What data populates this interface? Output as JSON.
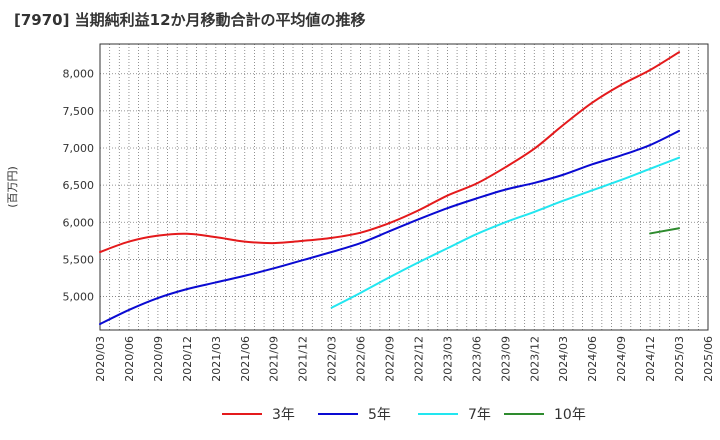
{
  "title": "[7970]  当期純利益12か月移動合計の平均値の推移",
  "chart_data": {
    "type": "line",
    "ylabel": "(百万円)",
    "xlabel": "",
    "ylim": [
      4550,
      8400
    ],
    "yticks": [
      5000,
      5500,
      6000,
      6500,
      7000,
      7500,
      8000
    ],
    "ytick_labels": [
      "5,000",
      "5,500",
      "6,000",
      "6,500",
      "7,000",
      "7,500",
      "8,000"
    ],
    "x_start": "2020/03",
    "x_end": "2025/06",
    "xtick_labels": [
      "2020/03",
      "2020/06",
      "2020/09",
      "2020/12",
      "2021/03",
      "2021/06",
      "2021/09",
      "2021/12",
      "2022/03",
      "2022/06",
      "2022/09",
      "2022/12",
      "2023/03",
      "2023/06",
      "2023/09",
      "2023/12",
      "2024/03",
      "2024/06",
      "2024/09",
      "2024/12",
      "2025/03",
      "2025/06"
    ],
    "grid": true,
    "legend_position": "bottom",
    "series": [
      {
        "name": "3年",
        "color": "#e41a1c",
        "x": [
          "2020/03",
          "2020/06",
          "2020/09",
          "2020/12",
          "2021/03",
          "2021/06",
          "2021/09",
          "2021/12",
          "2022/03",
          "2022/06",
          "2022/09",
          "2022/12",
          "2023/03",
          "2023/06",
          "2023/09",
          "2023/12",
          "2024/03",
          "2024/06",
          "2024/09",
          "2024/12",
          "2025/03"
        ],
        "values": [
          5600,
          5740,
          5820,
          5845,
          5800,
          5740,
          5720,
          5750,
          5790,
          5860,
          5990,
          6160,
          6360,
          6520,
          6740,
          6990,
          7310,
          7610,
          7850,
          8050,
          8290
        ]
      },
      {
        "name": "5年",
        "color": "#0a0ad2",
        "x": [
          "2020/03",
          "2020/06",
          "2020/09",
          "2020/12",
          "2021/03",
          "2021/06",
          "2021/09",
          "2021/12",
          "2022/03",
          "2022/06",
          "2022/09",
          "2022/12",
          "2023/03",
          "2023/06",
          "2023/09",
          "2023/12",
          "2024/03",
          "2024/06",
          "2024/09",
          "2024/12",
          "2025/03"
        ],
        "values": [
          4630,
          4820,
          4980,
          5100,
          5190,
          5280,
          5380,
          5490,
          5600,
          5720,
          5880,
          6040,
          6190,
          6320,
          6440,
          6530,
          6640,
          6780,
          6900,
          7040,
          7230
        ]
      },
      {
        "name": "7年",
        "color": "#22e6f0",
        "x": [
          "2022/03",
          "2022/06",
          "2022/09",
          "2022/12",
          "2023/03",
          "2023/06",
          "2023/09",
          "2023/12",
          "2024/03",
          "2024/06",
          "2024/09",
          "2024/12",
          "2025/03"
        ],
        "values": [
          4850,
          5050,
          5260,
          5460,
          5650,
          5840,
          6000,
          6140,
          6290,
          6430,
          6570,
          6720,
          6870
        ]
      },
      {
        "name": "10年",
        "color": "#2e8b2e",
        "x": [
          "2024/12",
          "2025/03"
        ],
        "values": [
          5850,
          5920
        ]
      }
    ]
  }
}
